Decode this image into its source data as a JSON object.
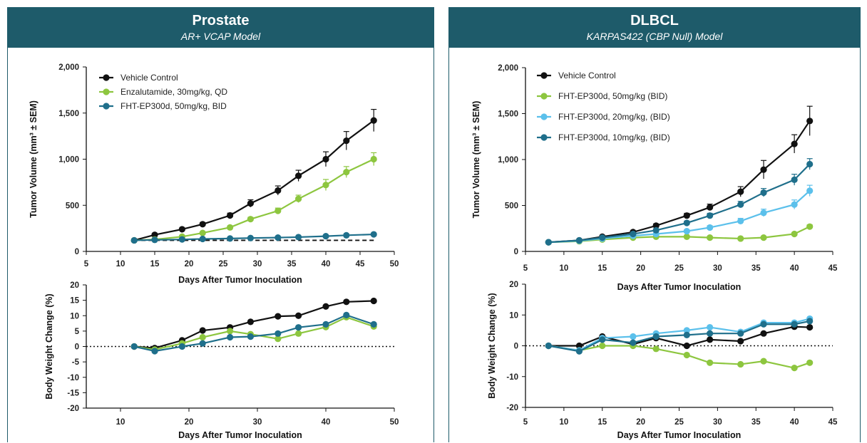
{
  "panels": [
    {
      "title": "Prostate",
      "subtitle": "AR+ VCAP Model"
    },
    {
      "title": "DLBCL",
      "subtitle": "KARPAS422 (CBP Null) Model"
    }
  ],
  "chart_data": [
    {
      "id": "prostate-tumor",
      "type": "line",
      "xlabel": "Days After Tumor Inoculation",
      "ylabel": "Tumor Volume (mm³ ± SEM)",
      "xlim": [
        5,
        50
      ],
      "ylim": [
        0,
        2000
      ],
      "xticks": [
        "5",
        "10",
        "15",
        "20",
        "25",
        "30",
        "35",
        "40",
        "45",
        "50"
      ],
      "yticks": [
        "0",
        "500",
        "1,000",
        "1,500",
        "2,000"
      ],
      "grid": false,
      "legend": "top-left",
      "reference_line": {
        "y": 120,
        "style": "dashed",
        "x_from": 12,
        "x_to": 47
      },
      "series": [
        {
          "name": "Vehicle  Control",
          "color": "#111111",
          "x": [
            12,
            15,
            19,
            22,
            26,
            29,
            33,
            36,
            40,
            43,
            47
          ],
          "y": [
            120,
            180,
            240,
            295,
            390,
            520,
            660,
            820,
            1000,
            1200,
            1420
          ],
          "err": [
            0,
            12,
            15,
            18,
            25,
            40,
            50,
            60,
            80,
            100,
            120
          ]
        },
        {
          "name": "Enzalutamide, 30mg/kg, QD",
          "color": "#8dc63f",
          "x": [
            12,
            15,
            19,
            22,
            26,
            29,
            33,
            36,
            40,
            43,
            47
          ],
          "y": [
            120,
            130,
            160,
            200,
            260,
            350,
            440,
            570,
            720,
            860,
            1000
          ],
          "err": [
            0,
            8,
            10,
            12,
            15,
            20,
            30,
            40,
            60,
            60,
            70
          ]
        },
        {
          "name": "FHT-EP300d, 50mg/kg, BID",
          "color": "#1f6f8b",
          "x": [
            12,
            15,
            19,
            22,
            26,
            29,
            33,
            36,
            40,
            43,
            47
          ],
          "y": [
            120,
            125,
            130,
            135,
            140,
            145,
            150,
            155,
            165,
            175,
            185
          ],
          "err": [
            0,
            5,
            5,
            5,
            5,
            6,
            6,
            6,
            8,
            8,
            10
          ]
        }
      ]
    },
    {
      "id": "prostate-bw",
      "type": "line",
      "xlabel": "Days After Tumor Inoculation",
      "ylabel": "Body Weight Change (%)",
      "xlim": [
        5,
        50
      ],
      "ylim": [
        -20,
        20
      ],
      "xticks": [
        "10",
        "20",
        "30",
        "40",
        "50"
      ],
      "yticks": [
        "-20",
        "-15",
        "-10",
        "-5",
        "0",
        "5",
        "10",
        "15",
        "20"
      ],
      "grid": false,
      "reference_line": {
        "y": 0,
        "style": "dotted"
      },
      "series": [
        {
          "name": "Vehicle  Control",
          "color": "#111111",
          "x": [
            12,
            15,
            19,
            22,
            26,
            29,
            33,
            36,
            40,
            43,
            47
          ],
          "y": [
            0,
            -0.5,
            2,
            5.2,
            6.2,
            8,
            9.8,
            10,
            13,
            14.5,
            14.8
          ]
        },
        {
          "name": "Enzalutamide, 30mg/kg, QD",
          "color": "#8dc63f",
          "x": [
            12,
            15,
            19,
            22,
            26,
            29,
            33,
            36,
            40,
            43,
            47
          ],
          "y": [
            0,
            -1,
            1,
            3,
            5,
            4,
            2.5,
            4.2,
            6.3,
            9.5,
            6.5
          ]
        },
        {
          "name": "FHT-EP300d, 50mg/kg, BID",
          "color": "#1f6f8b",
          "x": [
            12,
            15,
            19,
            22,
            26,
            29,
            33,
            36,
            40,
            43,
            47
          ],
          "y": [
            0,
            -1.5,
            0,
            1,
            3,
            3.2,
            4.2,
            6.2,
            7.2,
            10.2,
            7.2
          ]
        }
      ]
    },
    {
      "id": "dlbcl-tumor",
      "type": "line",
      "xlabel": "Days After Tumor Inoculation",
      "ylabel": "Tumor Volume (mm³ ± SEM)",
      "xlim": [
        5,
        45
      ],
      "ylim": [
        0,
        2000
      ],
      "xticks": [
        "5",
        "10",
        "15",
        "20",
        "25",
        "30",
        "35",
        "40",
        "45"
      ],
      "yticks": [
        "0",
        "500",
        "1,000",
        "1,500",
        "2,000"
      ],
      "grid": false,
      "legend": "top-left",
      "series": [
        {
          "name": "Vehicle Control",
          "color": "#111111",
          "x": [
            8,
            12,
            15,
            19,
            22,
            26,
            29,
            33,
            36,
            40,
            42
          ],
          "y": [
            100,
            120,
            160,
            210,
            280,
            390,
            480,
            650,
            890,
            1170,
            1420
          ],
          "err": [
            0,
            8,
            10,
            15,
            20,
            25,
            35,
            55,
            100,
            100,
            160
          ]
        },
        {
          "name": "FHT-EP300d, 50mg/kg (BID)",
          "color": "#8dc63f",
          "x": [
            8,
            12,
            15,
            19,
            22,
            26,
            29,
            33,
            36,
            40,
            42
          ],
          "y": [
            100,
            110,
            130,
            150,
            160,
            160,
            150,
            140,
            150,
            190,
            270
          ],
          "err": [
            0,
            5,
            5,
            8,
            8,
            8,
            8,
            8,
            10,
            15,
            20
          ]
        },
        {
          "name": "FHT-EP300d, 20mg/kg, (BID)",
          "color": "#5bc0eb",
          "x": [
            8,
            12,
            15,
            19,
            22,
            26,
            29,
            33,
            36,
            40,
            42
          ],
          "y": [
            100,
            115,
            140,
            170,
            190,
            220,
            260,
            330,
            420,
            510,
            660
          ],
          "err": [
            0,
            6,
            8,
            10,
            12,
            15,
            20,
            30,
            40,
            50,
            60
          ]
        },
        {
          "name": "FHT-EP300d, 10mg/kg, (BID)",
          "color": "#1f6f8b",
          "x": [
            8,
            12,
            15,
            19,
            22,
            26,
            29,
            33,
            36,
            40,
            42
          ],
          "y": [
            100,
            120,
            150,
            190,
            230,
            310,
            390,
            510,
            640,
            780,
            950
          ],
          "err": [
            0,
            6,
            8,
            10,
            15,
            20,
            25,
            35,
            45,
            60,
            60
          ]
        }
      ]
    },
    {
      "id": "dlbcl-bw",
      "type": "line",
      "xlabel": "Days After Tumor Inoculation",
      "ylabel": "Body Weight Change (%)",
      "xlim": [
        5,
        45
      ],
      "ylim": [
        -20,
        20
      ],
      "xticks": [
        "5",
        "10",
        "15",
        "20",
        "25",
        "30",
        "35",
        "40",
        "45"
      ],
      "yticks": [
        "-20",
        "-10",
        "0",
        "10",
        "20"
      ],
      "grid": false,
      "reference_line": {
        "y": 0,
        "style": "dotted"
      },
      "series": [
        {
          "name": "Vehicle Control",
          "color": "#111111",
          "x": [
            8,
            12,
            15,
            19,
            22,
            26,
            29,
            33,
            36,
            40,
            42
          ],
          "y": [
            0,
            0,
            3,
            0.5,
            2.5,
            0,
            2,
            1.5,
            4,
            6.2,
            6
          ]
        },
        {
          "name": "FHT-EP300d, 50mg/kg (BID)",
          "color": "#8dc63f",
          "x": [
            8,
            12,
            15,
            19,
            22,
            26,
            29,
            33,
            36,
            40,
            42
          ],
          "y": [
            0,
            -1.5,
            0,
            0,
            -1,
            -3,
            -5.5,
            -6,
            -5,
            -7.2,
            -5.5
          ]
        },
        {
          "name": "FHT-EP300d, 20mg/kg, (BID)",
          "color": "#5bc0eb",
          "x": [
            8,
            12,
            15,
            19,
            22,
            26,
            29,
            33,
            36,
            40,
            42
          ],
          "y": [
            0,
            -1.5,
            2.5,
            3,
            4,
            5,
            6,
            4.5,
            7.5,
            7.5,
            8.8
          ]
        },
        {
          "name": "FHT-EP300d, 10mg/kg, (BID)",
          "color": "#1f6f8b",
          "x": [
            8,
            12,
            15,
            19,
            22,
            26,
            29,
            33,
            36,
            40,
            42
          ],
          "y": [
            0,
            -1.8,
            2,
            1,
            3,
            3.5,
            4,
            4,
            7,
            7,
            8
          ]
        }
      ]
    }
  ]
}
